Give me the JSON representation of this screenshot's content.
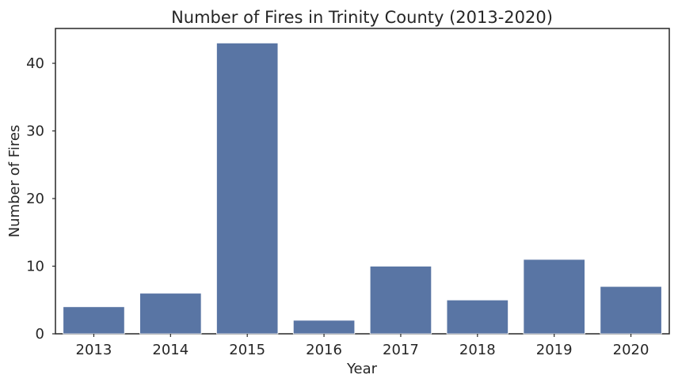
{
  "chart_data": {
    "type": "bar",
    "title": "Number of Fires in Trinity County (2013-2020)",
    "xlabel": "Year",
    "ylabel": "Number of Fires",
    "categories": [
      "2013",
      "2014",
      "2015",
      "2016",
      "2017",
      "2018",
      "2019",
      "2020"
    ],
    "values": [
      4,
      6,
      43,
      2,
      10,
      5,
      11,
      7
    ],
    "ylim": [
      0,
      45.15
    ],
    "yticks": [
      0,
      10,
      20,
      30,
      40
    ],
    "grid": false,
    "legend": "none",
    "colors": {
      "bar": "#5975a4",
      "axis": "#262626",
      "background": "#ffffff"
    }
  }
}
